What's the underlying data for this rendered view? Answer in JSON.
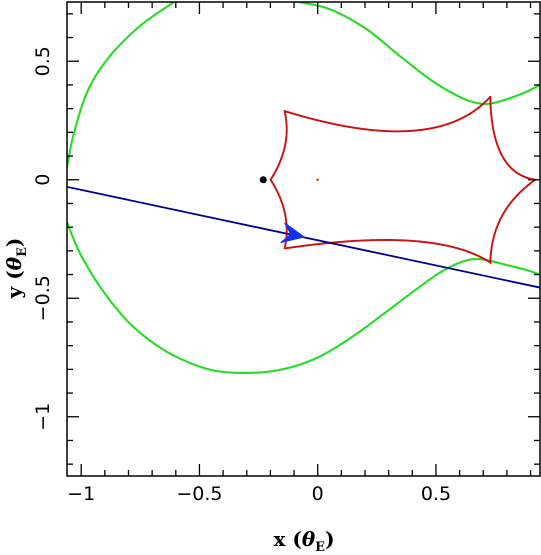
{
  "chart_data": {
    "type": "line",
    "title": "",
    "xlabel": {
      "prefix": "x (",
      "symbol": "θ",
      "subscript": "E",
      "suffix": ")"
    },
    "ylabel": {
      "prefix": "y (",
      "symbol": "θ",
      "subscript": "E",
      "suffix": ")"
    },
    "xlim": [
      -1.06,
      0.94
    ],
    "ylim": [
      -1.25,
      0.75
    ],
    "x_ticks": [
      -1,
      -0.5,
      0,
      0.5
    ],
    "x_tick_labels": [
      "−1",
      "−0.5",
      "0",
      "0.5"
    ],
    "y_ticks": [
      -1,
      -0.5,
      0,
      0.5
    ],
    "y_tick_labels": [
      "−1",
      "−0.5",
      "0",
      "0.5"
    ],
    "grid": false,
    "colors": {
      "critical_curve": "#22dd22",
      "caustic": "#cc1111",
      "trajectory": "#000088",
      "arrow": "#1133ee",
      "lens_primary": "#000000",
      "lens_secondary": "#cc6600"
    },
    "series": [
      {
        "kind": "critical_curve_outer",
        "style": "dotted",
        "x": [
          -0.607,
          -0.75,
          -0.88,
          -0.97,
          -1.03,
          -1.06
        ],
        "y": [
          0.75,
          0.65,
          0.52,
          0.38,
          0.2,
          0.05
        ]
      },
      {
        "kind": "critical_curve_outer_lower",
        "style": "dotted",
        "x": [
          -1.06,
          -1.0,
          -0.9,
          -0.78,
          -0.63,
          -0.46,
          -0.3,
          -0.15,
          0.0,
          0.15,
          0.3,
          0.42,
          0.52,
          0.6,
          0.66,
          0.72,
          0.8,
          0.88,
          0.94
        ],
        "y": [
          -0.18,
          -0.32,
          -0.48,
          -0.62,
          -0.73,
          -0.8,
          -0.815,
          -0.8,
          -0.75,
          -0.66,
          -0.55,
          -0.46,
          -0.39,
          -0.35,
          -0.335,
          -0.34,
          -0.36,
          -0.38,
          -0.4
        ],
        "points": 95
      },
      {
        "kind": "critical_curve_upper_right",
        "style": "dotted",
        "x": [
          -0.08,
          0.05,
          0.2,
          0.35,
          0.48,
          0.58,
          0.65,
          0.72,
          0.8,
          0.88,
          0.94
        ],
        "y": [
          0.75,
          0.72,
          0.64,
          0.52,
          0.42,
          0.36,
          0.33,
          0.32,
          0.34,
          0.37,
          0.4
        ]
      },
      {
        "kind": "caustic",
        "style": "dotted",
        "vertices": [
          {
            "x": -0.14,
            "y": 0.29
          },
          {
            "x": 0.73,
            "y": 0.35
          },
          {
            "x": 0.92,
            "y": 0.0
          },
          {
            "x": 0.73,
            "y": -0.35
          },
          {
            "x": -0.14,
            "y": -0.29
          },
          {
            "x": -0.14,
            "y": 0.29
          }
        ],
        "cusp_pull": 0.55,
        "extra_cusp": {
          "x": -0.14,
          "y": 0.0
        }
      },
      {
        "kind": "trajectory",
        "x": [
          -1.06,
          0.94
        ],
        "y": [
          -0.03,
          -0.455
        ]
      }
    ],
    "arrow": {
      "x": -0.09,
      "y": -0.235,
      "dx": 0.09,
      "dy": -0.018
    },
    "lenses": [
      {
        "x": -0.23,
        "y": 0.0,
        "role": "primary"
      },
      {
        "x": 0.0,
        "y": 0.0,
        "role": "secondary"
      }
    ]
  }
}
